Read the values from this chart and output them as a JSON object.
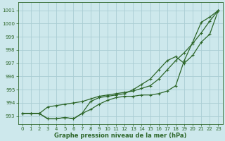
{
  "title": "Graphe pression niveau de la mer (hPa)",
  "bg_color": "#cde8ec",
  "grid_color": "#aacdd4",
  "line_color": "#2d6629",
  "xlim": [
    -0.5,
    23.5
  ],
  "ylim": [
    992.4,
    1001.6
  ],
  "yticks": [
    993,
    994,
    995,
    996,
    997,
    998,
    999,
    1000,
    1001
  ],
  "xticks": [
    0,
    1,
    2,
    3,
    4,
    5,
    6,
    7,
    8,
    9,
    10,
    11,
    12,
    13,
    14,
    15,
    16,
    17,
    18,
    19,
    20,
    21,
    22,
    23
  ],
  "line1_x": [
    0,
    1,
    2,
    3,
    4,
    5,
    6,
    7,
    8,
    9,
    10,
    11,
    12,
    13,
    14,
    15,
    16,
    17,
    18,
    19,
    20,
    21,
    22,
    23
  ],
  "line1_y": [
    993.2,
    993.2,
    993.2,
    993.7,
    993.8,
    993.9,
    994.0,
    994.1,
    994.3,
    994.5,
    994.6,
    994.7,
    994.8,
    994.9,
    995.1,
    995.3,
    995.8,
    996.5,
    997.2,
    997.8,
    998.5,
    999.3,
    1000.2,
    1001.0
  ],
  "line2_x": [
    0,
    1,
    2,
    3,
    4,
    5,
    6,
    7,
    8,
    9,
    10,
    11,
    12,
    13,
    14,
    15,
    16,
    17,
    18,
    19,
    20,
    21,
    22,
    23
  ],
  "line2_y": [
    993.2,
    993.2,
    993.2,
    992.8,
    992.8,
    992.9,
    992.8,
    993.2,
    993.5,
    993.9,
    994.2,
    994.4,
    994.5,
    994.5,
    994.6,
    994.6,
    994.7,
    994.9,
    995.3,
    997.2,
    998.6,
    1000.1,
    1000.5,
    1001.0
  ],
  "line3_x": [
    0,
    1,
    2,
    3,
    4,
    5,
    6,
    7,
    8,
    9,
    10,
    11,
    12,
    13,
    14,
    15,
    16,
    17,
    18,
    19,
    20,
    21,
    22,
    23
  ],
  "line3_y": [
    993.2,
    993.2,
    993.2,
    992.8,
    992.8,
    992.9,
    992.8,
    993.2,
    994.1,
    994.4,
    994.5,
    994.6,
    994.7,
    995.0,
    995.4,
    995.8,
    996.5,
    997.2,
    997.5,
    997.0,
    997.6,
    998.6,
    999.2,
    1001.0
  ],
  "ylabel_fontsize": 5,
  "xlabel_fontsize": 6,
  "tick_fontsize": 5,
  "linewidth": 0.9,
  "markersize": 2.5
}
